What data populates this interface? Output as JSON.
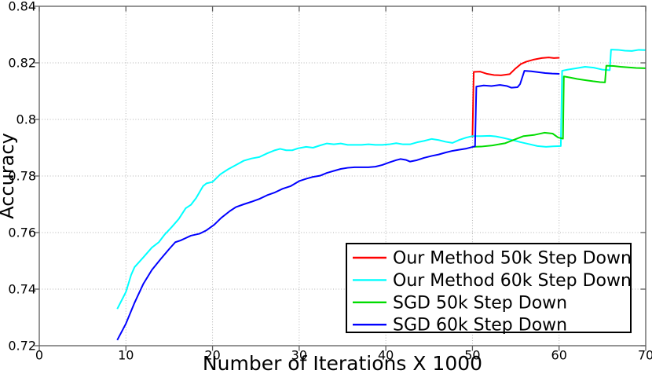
{
  "chart_data": {
    "type": "line",
    "title": "",
    "xlabel": "Number of Iterations X 1000",
    "ylabel": "Accuracy",
    "xlim": [
      0,
      70
    ],
    "ylim": [
      0.72,
      0.84
    ],
    "xticks": [
      0,
      10,
      20,
      30,
      40,
      50,
      60,
      70
    ],
    "xtick_labels": [
      "0",
      "10",
      "20",
      "30",
      "40",
      "50",
      "60",
      "70"
    ],
    "yticks": [
      0.72,
      0.74,
      0.76,
      0.78,
      0.8,
      0.82,
      0.84
    ],
    "ytick_labels": [
      "0.72",
      "0.74",
      "0.76",
      "0.78",
      "0.8",
      "0.82",
      "0.84"
    ],
    "grid": true,
    "grid_style": "dotted",
    "legend_position": "lower-right-inside",
    "series": [
      {
        "name": "Our Method 50k Step Down",
        "color": "#ff0000",
        "points": [
          [
            50.0,
            0.7936
          ],
          [
            50.15,
            0.8168
          ],
          [
            50.9,
            0.8169
          ],
          [
            51.7,
            0.8161
          ],
          [
            52.5,
            0.8157
          ],
          [
            53.3,
            0.8156
          ],
          [
            54.3,
            0.816
          ],
          [
            54.9,
            0.8178
          ],
          [
            55.6,
            0.8196
          ],
          [
            56.2,
            0.8204
          ],
          [
            57.0,
            0.8211
          ],
          [
            58.0,
            0.8217
          ],
          [
            58.8,
            0.8219
          ],
          [
            59.4,
            0.8217
          ],
          [
            60.05,
            0.8218
          ]
        ]
      },
      {
        "name": "Our Method 60k Step Down",
        "color": "#00ffff",
        "points": [
          [
            9,
            0.733
          ],
          [
            10,
            0.739
          ],
          [
            10.6,
            0.745
          ],
          [
            11,
            0.7478
          ],
          [
            12,
            0.7512
          ],
          [
            13,
            0.7547
          ],
          [
            13.8,
            0.7566
          ],
          [
            14.5,
            0.7594
          ],
          [
            15.3,
            0.762
          ],
          [
            16.1,
            0.7648
          ],
          [
            16.9,
            0.7686
          ],
          [
            17.5,
            0.7698
          ],
          [
            18.1,
            0.7722
          ],
          [
            18.9,
            0.7764
          ],
          [
            19.3,
            0.7774
          ],
          [
            20,
            0.7779
          ],
          [
            20.9,
            0.7806
          ],
          [
            21.8,
            0.7824
          ],
          [
            22.7,
            0.7839
          ],
          [
            23.6,
            0.7854
          ],
          [
            24.5,
            0.7862
          ],
          [
            25.4,
            0.7867
          ],
          [
            26.3,
            0.788
          ],
          [
            27.2,
            0.7891
          ],
          [
            27.8,
            0.7896
          ],
          [
            28.5,
            0.7891
          ],
          [
            29.2,
            0.7891
          ],
          [
            29.9,
            0.7898
          ],
          [
            30.8,
            0.7903
          ],
          [
            31.6,
            0.79
          ],
          [
            32.4,
            0.7908
          ],
          [
            33.2,
            0.7915
          ],
          [
            34,
            0.7912
          ],
          [
            34.8,
            0.7915
          ],
          [
            35.6,
            0.791
          ],
          [
            36.4,
            0.791
          ],
          [
            37.2,
            0.791
          ],
          [
            38,
            0.7912
          ],
          [
            38.8,
            0.791
          ],
          [
            39.6,
            0.791
          ],
          [
            40.4,
            0.7912
          ],
          [
            41.2,
            0.7916
          ],
          [
            42,
            0.7912
          ],
          [
            42.8,
            0.7912
          ],
          [
            43.6,
            0.7919
          ],
          [
            44.4,
            0.7924
          ],
          [
            45.3,
            0.7931
          ],
          [
            46.1,
            0.7927
          ],
          [
            46.9,
            0.7921
          ],
          [
            47.7,
            0.7917
          ],
          [
            48.5,
            0.7928
          ],
          [
            49.3,
            0.7936
          ],
          [
            50,
            0.7941
          ],
          [
            51,
            0.7941
          ],
          [
            52,
            0.7942
          ],
          [
            52.7,
            0.794
          ],
          [
            53.5,
            0.7935
          ],
          [
            54.5,
            0.7928
          ],
          [
            55.5,
            0.792
          ],
          [
            56.5,
            0.7913
          ],
          [
            57.5,
            0.7906
          ],
          [
            58.5,
            0.7903
          ],
          [
            59.3,
            0.7905
          ],
          [
            60.2,
            0.7906
          ],
          [
            60.35,
            0.8172
          ],
          [
            61,
            0.8176
          ],
          [
            62,
            0.8181
          ],
          [
            63,
            0.8186
          ],
          [
            64,
            0.8183
          ],
          [
            65,
            0.8176
          ],
          [
            65.85,
            0.8174
          ],
          [
            66,
            0.8247
          ],
          [
            66.8,
            0.8246
          ],
          [
            67.6,
            0.8243
          ],
          [
            68.4,
            0.8242
          ],
          [
            69.2,
            0.8246
          ],
          [
            70,
            0.8245
          ]
        ]
      },
      {
        "name": "SGD 50k Step Down",
        "color": "#00dc00",
        "points": [
          [
            50.1,
            0.7903
          ],
          [
            51,
            0.7904
          ],
          [
            52.3,
            0.7908
          ],
          [
            53.8,
            0.7916
          ],
          [
            54.7,
            0.7927
          ],
          [
            55.9,
            0.7941
          ],
          [
            57.1,
            0.7945
          ],
          [
            58.3,
            0.7953
          ],
          [
            59.25,
            0.795
          ],
          [
            59.9,
            0.7936
          ],
          [
            60.45,
            0.7932
          ],
          [
            60.55,
            0.8152
          ],
          [
            61.3,
            0.8148
          ],
          [
            62.1,
            0.8143
          ],
          [
            63,
            0.8139
          ],
          [
            63.9,
            0.8135
          ],
          [
            64.7,
            0.8132
          ],
          [
            65.3,
            0.8131
          ],
          [
            65.45,
            0.819
          ],
          [
            66.3,
            0.8189
          ],
          [
            67.1,
            0.8186
          ],
          [
            68,
            0.8184
          ],
          [
            68.9,
            0.8182
          ],
          [
            70,
            0.8181
          ]
        ]
      },
      {
        "name": "SGD 60k Step Down",
        "color": "#0000ff",
        "points": [
          [
            9,
            0.722
          ],
          [
            10,
            0.7278
          ],
          [
            11,
            0.7352
          ],
          [
            12,
            0.7418
          ],
          [
            13,
            0.7468
          ],
          [
            14,
            0.7506
          ],
          [
            15,
            0.7542
          ],
          [
            15.7,
            0.7566
          ],
          [
            16.3,
            0.7572
          ],
          [
            17,
            0.7582
          ],
          [
            17.5,
            0.7589
          ],
          [
            18.5,
            0.7596
          ],
          [
            19.3,
            0.7608
          ],
          [
            20.2,
            0.7628
          ],
          [
            21,
            0.7652
          ],
          [
            22,
            0.7676
          ],
          [
            22.7,
            0.769
          ],
          [
            23.6,
            0.77
          ],
          [
            24.5,
            0.7709
          ],
          [
            25.4,
            0.7719
          ],
          [
            26.3,
            0.7732
          ],
          [
            27.2,
            0.7742
          ],
          [
            28.1,
            0.7755
          ],
          [
            29,
            0.7764
          ],
          [
            30,
            0.7782
          ],
          [
            30.8,
            0.779
          ],
          [
            31.6,
            0.7797
          ],
          [
            32.4,
            0.7801
          ],
          [
            33.2,
            0.7811
          ],
          [
            34,
            0.7818
          ],
          [
            34.8,
            0.7825
          ],
          [
            35.6,
            0.7829
          ],
          [
            36.4,
            0.7831
          ],
          [
            38,
            0.7831
          ],
          [
            38.8,
            0.7833
          ],
          [
            39.6,
            0.7839
          ],
          [
            40.4,
            0.7848
          ],
          [
            41.2,
            0.7856
          ],
          [
            41.7,
            0.786
          ],
          [
            42.3,
            0.7857
          ],
          [
            42.8,
            0.7851
          ],
          [
            43.6,
            0.7856
          ],
          [
            44.4,
            0.7864
          ],
          [
            45.3,
            0.7871
          ],
          [
            46.1,
            0.7876
          ],
          [
            46.9,
            0.7883
          ],
          [
            47.7,
            0.7889
          ],
          [
            48.5,
            0.7893
          ],
          [
            49.3,
            0.7897
          ],
          [
            50.3,
            0.7905
          ],
          [
            50.45,
            0.8116
          ],
          [
            51.3,
            0.812
          ],
          [
            52.2,
            0.8118
          ],
          [
            53.2,
            0.8122
          ],
          [
            54,
            0.8118
          ],
          [
            54.5,
            0.8112
          ],
          [
            55.2,
            0.8114
          ],
          [
            55.5,
            0.8125
          ],
          [
            56,
            0.8172
          ],
          [
            56.8,
            0.817
          ],
          [
            57.6,
            0.8167
          ],
          [
            58.4,
            0.8164
          ],
          [
            59.2,
            0.8162
          ],
          [
            60.05,
            0.8161
          ]
        ]
      }
    ]
  },
  "colors": {
    "background": "#ffffff",
    "grid": "#b3b3b3",
    "frame": "#5c5c5c",
    "tick": "#5c5c5c",
    "text": "#000000",
    "legend_border": "#000000",
    "legend_background": "#ffffff"
  }
}
